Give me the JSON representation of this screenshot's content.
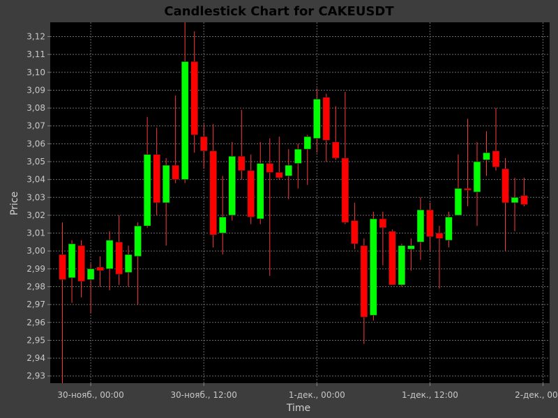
{
  "chart_data": {
    "type": "candlestick",
    "title": "Candlestick Chart for CAKEUSDT",
    "xlabel": "Time",
    "ylabel": "Price",
    "ylim": [
      2.926,
      3.128
    ],
    "y_ticks": [
      "2,93",
      "2,94",
      "2,95",
      "2,96",
      "2,97",
      "2,98",
      "2,99",
      "3,00",
      "3,01",
      "3,02",
      "3,03",
      "3,04",
      "3,05",
      "3,06",
      "3,07",
      "3,08",
      "3,09",
      "3,10",
      "3,11",
      "3,12"
    ],
    "y_tick_values": [
      2.93,
      2.94,
      2.95,
      2.96,
      2.97,
      2.98,
      2.99,
      3.0,
      3.01,
      3.02,
      3.03,
      3.04,
      3.05,
      3.06,
      3.07,
      3.08,
      3.09,
      3.1,
      3.11,
      3.12
    ],
    "x_ticks": [
      "30-нояб., 00:00",
      "30-нояб., 12:00",
      "1-дек., 00:00",
      "1-дек., 12:00",
      "2-дек., 00:00"
    ],
    "x_tick_hours": [
      0,
      12,
      24,
      36,
      48
    ],
    "xlim_hours": [
      -4.3,
      48.7
    ],
    "grid": true,
    "colors": {
      "up": "#00ff00",
      "down": "#ff0000",
      "wick": "#ff3a3a",
      "background": "#000000",
      "page": "#3d3d3d",
      "grid": "#6e6e6e"
    },
    "candles": [
      {
        "t": -3,
        "o": 2.998,
        "h": 3.016,
        "l": 2.926,
        "c": 2.984
      },
      {
        "t": -2,
        "o": 2.985,
        "h": 3.006,
        "l": 2.971,
        "c": 3.004
      },
      {
        "t": -1,
        "o": 3.003,
        "h": 3.006,
        "l": 2.974,
        "c": 2.983
      },
      {
        "t": 0,
        "o": 2.984,
        "h": 2.993,
        "l": 2.965,
        "c": 2.99
      },
      {
        "t": 1,
        "o": 2.991,
        "h": 2.997,
        "l": 2.98,
        "c": 2.989
      },
      {
        "t": 2,
        "o": 2.99,
        "h": 3.011,
        "l": 2.978,
        "c": 3.006
      },
      {
        "t": 3,
        "o": 3.005,
        "h": 3.02,
        "l": 2.981,
        "c": 2.987
      },
      {
        "t": 4,
        "o": 2.988,
        "h": 3.003,
        "l": 2.98,
        "c": 2.998
      },
      {
        "t": 5,
        "o": 2.997,
        "h": 3.016,
        "l": 2.97,
        "c": 3.014
      },
      {
        "t": 6,
        "o": 3.014,
        "h": 3.075,
        "l": 3.013,
        "c": 3.054
      },
      {
        "t": 7,
        "o": 3.054,
        "h": 3.069,
        "l": 3.02,
        "c": 3.027
      },
      {
        "t": 8,
        "o": 3.027,
        "h": 3.052,
        "l": 3.003,
        "c": 3.048
      },
      {
        "t": 9,
        "o": 3.048,
        "h": 3.087,
        "l": 3.038,
        "c": 3.04
      },
      {
        "t": 10,
        "o": 3.04,
        "h": 3.128,
        "l": 3.038,
        "c": 3.106
      },
      {
        "t": 11,
        "o": 3.106,
        "h": 3.123,
        "l": 3.055,
        "c": 3.065
      },
      {
        "t": 12,
        "o": 3.064,
        "h": 3.071,
        "l": 3.046,
        "c": 3.056
      },
      {
        "t": 13,
        "o": 3.056,
        "h": 3.071,
        "l": 3.002,
        "c": 3.009
      },
      {
        "t": 14,
        "o": 3.01,
        "h": 3.042,
        "l": 2.998,
        "c": 3.019
      },
      {
        "t": 15,
        "o": 3.02,
        "h": 3.061,
        "l": 3.017,
        "c": 3.053
      },
      {
        "t": 16,
        "o": 3.053,
        "h": 3.079,
        "l": 3.04,
        "c": 3.045
      },
      {
        "t": 17,
        "o": 3.045,
        "h": 3.054,
        "l": 3.015,
        "c": 3.019
      },
      {
        "t": 18,
        "o": 3.018,
        "h": 3.061,
        "l": 3.015,
        "c": 3.049
      },
      {
        "t": 19,
        "o": 3.049,
        "h": 3.063,
        "l": 2.986,
        "c": 3.044
      },
      {
        "t": 20,
        "o": 3.044,
        "h": 3.064,
        "l": 3.04,
        "c": 3.041
      },
      {
        "t": 21,
        "o": 3.042,
        "h": 3.057,
        "l": 3.029,
        "c": 3.048
      },
      {
        "t": 22,
        "o": 3.049,
        "h": 3.06,
        "l": 3.035,
        "c": 3.057
      },
      {
        "t": 23,
        "o": 3.057,
        "h": 3.065,
        "l": 3.037,
        "c": 3.064
      },
      {
        "t": 24,
        "o": 3.063,
        "h": 3.091,
        "l": 3.055,
        "c": 3.085
      },
      {
        "t": 25,
        "o": 3.086,
        "h": 3.088,
        "l": 3.05,
        "c": 3.062
      },
      {
        "t": 26,
        "o": 3.061,
        "h": 3.081,
        "l": 3.051,
        "c": 3.052
      },
      {
        "t": 27,
        "o": 3.052,
        "h": 3.089,
        "l": 3.015,
        "c": 3.016
      },
      {
        "t": 28,
        "o": 3.017,
        "h": 3.027,
        "l": 3.001,
        "c": 3.004
      },
      {
        "t": 29,
        "o": 3.003,
        "h": 3.007,
        "l": 2.948,
        "c": 2.963
      },
      {
        "t": 30,
        "o": 2.964,
        "h": 3.022,
        "l": 2.961,
        "c": 3.018
      },
      {
        "t": 31,
        "o": 3.018,
        "h": 3.022,
        "l": 2.992,
        "c": 3.013
      },
      {
        "t": 32,
        "o": 3.011,
        "h": 3.012,
        "l": 2.981,
        "c": 2.981
      },
      {
        "t": 33,
        "o": 2.981,
        "h": 3.004,
        "l": 2.98,
        "c": 3.003
      },
      {
        "t": 34,
        "o": 3.001,
        "h": 3.007,
        "l": 2.989,
        "c": 3.003
      },
      {
        "t": 35,
        "o": 3.005,
        "h": 3.03,
        "l": 2.995,
        "c": 3.023
      },
      {
        "t": 36,
        "o": 3.023,
        "h": 3.027,
        "l": 3.0,
        "c": 3.008
      },
      {
        "t": 37,
        "o": 3.01,
        "h": 3.014,
        "l": 2.979,
        "c": 3.007
      },
      {
        "t": 38,
        "o": 3.006,
        "h": 3.022,
        "l": 3.002,
        "c": 3.019
      },
      {
        "t": 39,
        "o": 3.02,
        "h": 3.054,
        "l": 3.02,
        "c": 3.035
      },
      {
        "t": 40,
        "o": 3.035,
        "h": 3.074,
        "l": 3.025,
        "c": 3.034
      },
      {
        "t": 41,
        "o": 3.033,
        "h": 3.061,
        "l": 3.014,
        "c": 3.05
      },
      {
        "t": 42,
        "o": 3.051,
        "h": 3.067,
        "l": 3.042,
        "c": 3.055
      },
      {
        "t": 43,
        "o": 3.056,
        "h": 3.08,
        "l": 3.045,
        "c": 3.047
      },
      {
        "t": 44,
        "o": 3.046,
        "h": 3.052,
        "l": 3.0,
        "c": 3.027
      },
      {
        "t": 45,
        "o": 3.027,
        "h": 3.041,
        "l": 3.011,
        "c": 3.03
      },
      {
        "t": 46,
        "o": 3.031,
        "h": 3.041,
        "l": 3.025,
        "c": 3.026
      }
    ]
  }
}
